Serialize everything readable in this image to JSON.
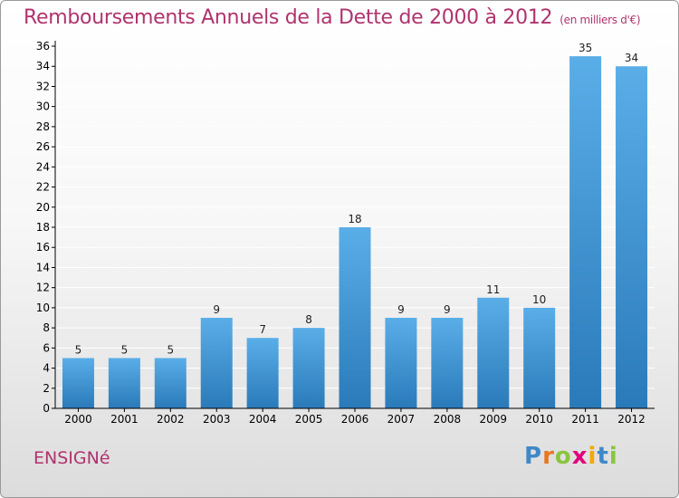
{
  "header": {
    "title": "Remboursements Annuels de la Dette de 2000 à 2012",
    "unit": "(en milliers d'€)"
  },
  "footer": {
    "commune": "ENSIGNé",
    "logo_text": "Proxiti"
  },
  "colors": {
    "title": "#b0336e",
    "bar_light": "#5aaee8",
    "bar_dark": "#2a7ab9",
    "axis": "#000000",
    "grid": "#ffffff"
  },
  "chart_data": {
    "type": "bar",
    "title": "Remboursements Annuels de la Dette de 2000 à 2012",
    "xlabel": "",
    "ylabel": "",
    "categories": [
      "2000",
      "2001",
      "2002",
      "2003",
      "2004",
      "2005",
      "2006",
      "2007",
      "2008",
      "2009",
      "2010",
      "2011",
      "2012"
    ],
    "values": [
      5,
      5,
      5,
      9,
      7,
      8,
      18,
      9,
      9,
      11,
      10,
      35,
      34
    ],
    "ylim": [
      0,
      36
    ],
    "yticks": [
      0,
      2,
      4,
      6,
      8,
      10,
      12,
      14,
      16,
      18,
      20,
      22,
      24,
      26,
      28,
      30,
      32,
      34,
      36
    ],
    "grid": true,
    "data_labels": true
  }
}
